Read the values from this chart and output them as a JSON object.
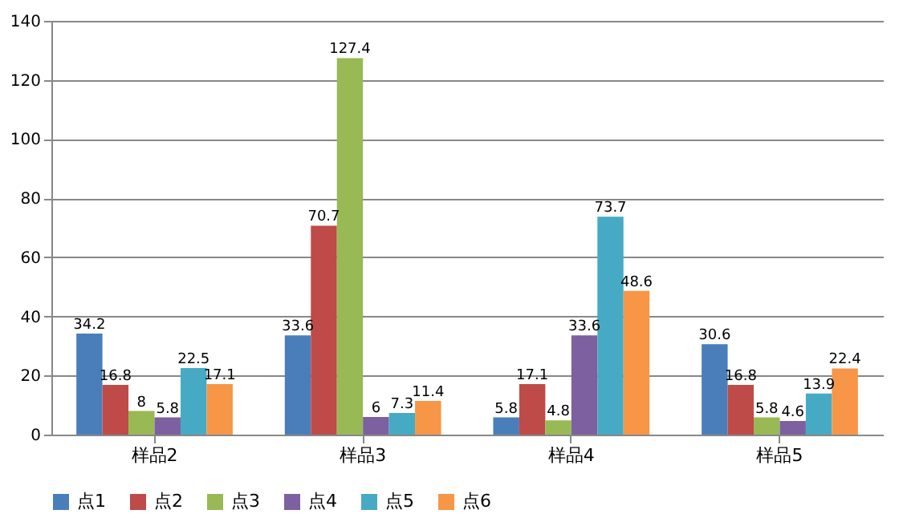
{
  "chart_data": {
    "type": "bar",
    "categories": [
      "样品2",
      "样品3",
      "样品4",
      "样品5"
    ],
    "series": [
      {
        "name": "点1",
        "color": "#4a7ebb",
        "values": [
          34.2,
          33.6,
          5.8,
          30.6
        ]
      },
      {
        "name": "点2",
        "color": "#be4b48",
        "values": [
          16.8,
          70.7,
          17.1,
          16.8
        ]
      },
      {
        "name": "点3",
        "color": "#98b954",
        "values": [
          8,
          127.4,
          4.8,
          5.8
        ]
      },
      {
        "name": "点4",
        "color": "#7d60a0",
        "values": [
          5.8,
          6,
          33.6,
          4.6
        ]
      },
      {
        "name": "点5",
        "color": "#46aac5",
        "values": [
          22.5,
          7.3,
          73.7,
          13.9
        ]
      },
      {
        "name": "点6",
        "color": "#f79646",
        "values": [
          17.1,
          11.4,
          48.6,
          22.4
        ]
      }
    ],
    "ylim": [
      0,
      140
    ],
    "yticks": [
      0,
      20,
      40,
      60,
      80,
      100,
      120,
      140
    ],
    "grid": "y",
    "legend": "bottom",
    "data_labels": true
  }
}
